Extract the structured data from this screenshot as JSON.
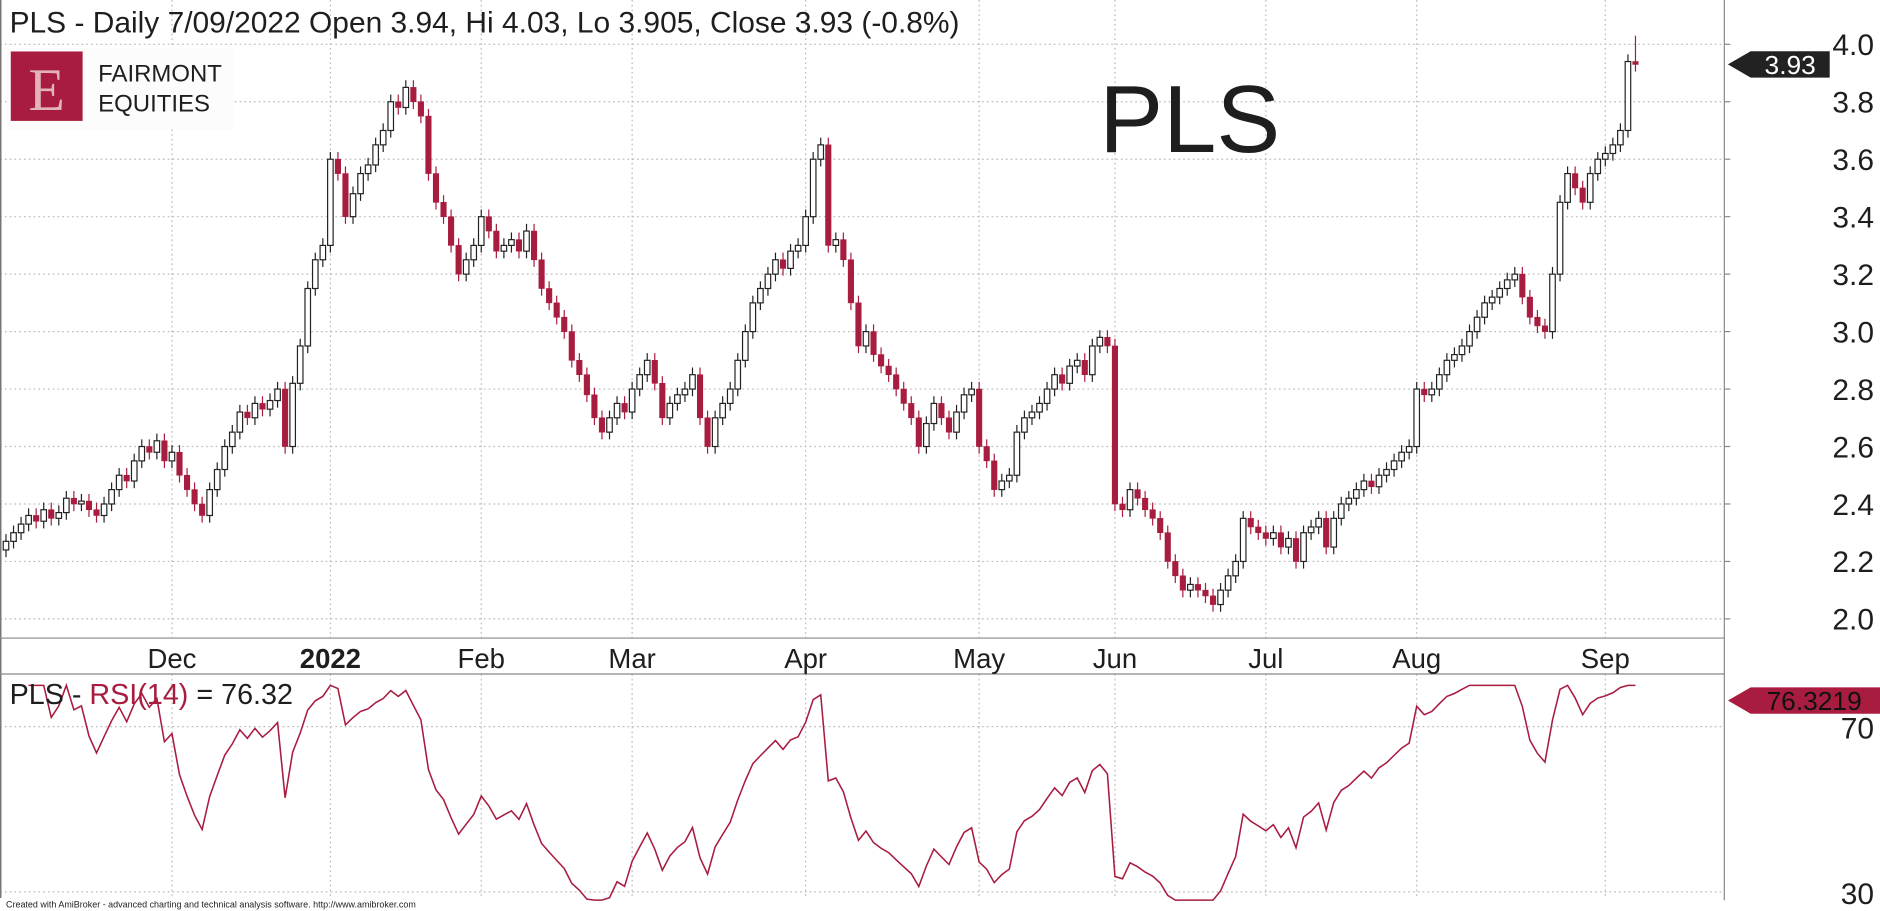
{
  "header": {
    "title": "PLS - Daily 7/09/2022 Open 3.94, Hi 4.03, Lo 3.905, Close 3.93 (-0.8%)",
    "watermark": "PLS"
  },
  "logo": {
    "letter": "E",
    "line1": "FAIRMONT",
    "line2": "EQUITIES"
  },
  "footer": "Created with AmiBroker - advanced charting and technical analysis software. http://www.amibroker.com",
  "colors": {
    "down": "#a81c3f",
    "up": "#ffffff",
    "outline": "#222222",
    "badge_price": "#222222",
    "badge_rsi": "#a81c3f",
    "rsi_line": "#a81c3f"
  },
  "chart_data": [
    {
      "type": "candlestick",
      "title": "PLS - Daily",
      "symbol": "PLS",
      "last": {
        "date": "7/09/2022",
        "open": 3.94,
        "high": 4.03,
        "low": 3.905,
        "close": 3.93,
        "change": "-0.8%"
      },
      "last_label": "3.93",
      "ylim": [
        2.0,
        4.0
      ],
      "y_ticks": [
        "4.0",
        "3.8",
        "3.6",
        "3.4",
        "3.2",
        "3.0",
        "2.8",
        "2.6",
        "2.4",
        "2.2",
        "2.0"
      ],
      "x_ticks": [
        {
          "label": "Dec",
          "bar": 22,
          "bold": false
        },
        {
          "label": "2022",
          "bar": 43,
          "bold": true
        },
        {
          "label": "Feb",
          "bar": 63,
          "bold": false
        },
        {
          "label": "Mar",
          "bar": 83,
          "bold": false
        },
        {
          "label": "Apr",
          "bar": 106,
          "bold": false
        },
        {
          "label": "May",
          "bar": 129,
          "bold": false
        },
        {
          "label": "Jun",
          "bar": 147,
          "bold": false
        },
        {
          "label": "Jul",
          "bar": 167,
          "bold": false
        },
        {
          "label": "Aug",
          "bar": 187,
          "bold": false
        },
        {
          "label": "Sep",
          "bar": 212,
          "bold": false
        }
      ],
      "closes": [
        2.27,
        2.3,
        2.33,
        2.36,
        2.34,
        2.38,
        2.35,
        2.37,
        2.42,
        2.4,
        2.41,
        2.38,
        2.36,
        2.4,
        2.45,
        2.5,
        2.48,
        2.55,
        2.6,
        2.58,
        2.62,
        2.55,
        2.58,
        2.5,
        2.45,
        2.4,
        2.36,
        2.45,
        2.52,
        2.6,
        2.65,
        2.72,
        2.7,
        2.75,
        2.73,
        2.76,
        2.8,
        2.6,
        2.82,
        2.95,
        3.15,
        3.25,
        3.3,
        3.6,
        3.55,
        3.4,
        3.48,
        3.55,
        3.58,
        3.65,
        3.7,
        3.8,
        3.78,
        3.85,
        3.8,
        3.75,
        3.55,
        3.45,
        3.4,
        3.3,
        3.2,
        3.25,
        3.3,
        3.4,
        3.35,
        3.28,
        3.3,
        3.32,
        3.28,
        3.35,
        3.25,
        3.15,
        3.1,
        3.05,
        3.0,
        2.9,
        2.85,
        2.78,
        2.7,
        2.65,
        2.7,
        2.75,
        2.72,
        2.8,
        2.85,
        2.9,
        2.82,
        2.7,
        2.75,
        2.78,
        2.8,
        2.85,
        2.7,
        2.6,
        2.7,
        2.75,
        2.8,
        2.9,
        3.0,
        3.1,
        3.15,
        3.2,
        3.25,
        3.22,
        3.28,
        3.3,
        3.4,
        3.6,
        3.65,
        3.3,
        3.32,
        3.25,
        3.1,
        2.95,
        3.0,
        2.92,
        2.88,
        2.85,
        2.8,
        2.75,
        2.7,
        2.6,
        2.68,
        2.75,
        2.7,
        2.65,
        2.72,
        2.78,
        2.8,
        2.6,
        2.55,
        2.45,
        2.48,
        2.5,
        2.65,
        2.7,
        2.72,
        2.75,
        2.8,
        2.85,
        2.82,
        2.88,
        2.9,
        2.85,
        2.95,
        2.98,
        2.95,
        2.4,
        2.38,
        2.45,
        2.42,
        2.38,
        2.35,
        2.3,
        2.2,
        2.15,
        2.1,
        2.12,
        2.1,
        2.08,
        2.05,
        2.1,
        2.15,
        2.2,
        2.35,
        2.32,
        2.3,
        2.28,
        2.3,
        2.25,
        2.28,
        2.2,
        2.3,
        2.32,
        2.35,
        2.25,
        2.35,
        2.4,
        2.42,
        2.45,
        2.48,
        2.46,
        2.5,
        2.52,
        2.55,
        2.58,
        2.6,
        2.8,
        2.78,
        2.8,
        2.85,
        2.9,
        2.92,
        2.95,
        3.0,
        3.05,
        3.1,
        3.12,
        3.15,
        3.18,
        3.2,
        3.12,
        3.05,
        3.02,
        3.0,
        3.2,
        3.45,
        3.55,
        3.5,
        3.45,
        3.55,
        3.6,
        3.62,
        3.65,
        3.7,
        3.94,
        3.93
      ]
    },
    {
      "type": "line",
      "title_prefix": "PLS - ",
      "title_indicator": "RSI(14)",
      "title_suffix": " = 76.32",
      "period": 14,
      "last_value": "76.3219",
      "ylim": [
        30,
        70
      ],
      "y_ticks": [
        "70",
        "30"
      ]
    }
  ]
}
